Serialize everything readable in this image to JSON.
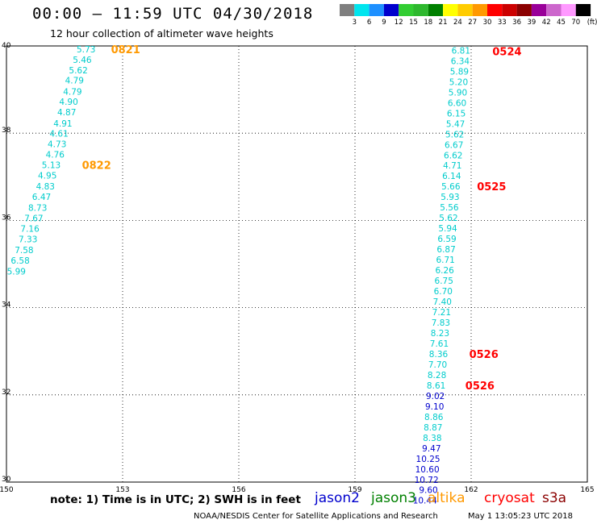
{
  "header": {
    "title": "00:00 – 11:59 UTC 04/30/2018",
    "subtitle": "12 hour collection of altimeter wave heights"
  },
  "colorbar": {
    "labels": [
      "3",
      "6",
      "9",
      "12",
      "15",
      "18",
      "21",
      "24",
      "27",
      "30",
      "33",
      "36",
      "39",
      "42",
      "45",
      "70"
    ],
    "unit": "(ft)",
    "colors": [
      "#7f7f7f",
      "#00e5ee",
      "#1e90ff",
      "#0000cd",
      "#32cd32",
      "#2eb82e",
      "#008000",
      "#ffff00",
      "#ffcc00",
      "#ff9900",
      "#ff0000",
      "#cc0000",
      "#8b0000",
      "#990099",
      "#cc66cc",
      "#ff99ff",
      "#000000"
    ]
  },
  "footer": {
    "note": "note: 1) Time is in UTC; 2) SWH is in feet",
    "satellites": [
      {
        "name": "jason2",
        "color": "#0000cd"
      },
      {
        "name": "jason3",
        "color": "#008000"
      },
      {
        "name": "altika",
        "color": "#ff9900"
      },
      {
        "name": "cryosat",
        "color": "#ff0000"
      },
      {
        "name": "s3a",
        "color": "#8b0000"
      }
    ],
    "credit": "NOAA/NESDIS Center for Satellite Applications and Research",
    "timestamp": "May 1 13:05:23 UTC 2018"
  },
  "chart_data": {
    "type": "scatter",
    "xlim": [
      150,
      165
    ],
    "ylim": [
      30,
      40
    ],
    "xticks": [
      "150",
      "153",
      "156",
      "159",
      "162",
      "165"
    ],
    "yticks": [
      "30",
      "32",
      "34",
      "36",
      "38",
      "40"
    ],
    "grid": true,
    "series": [
      {
        "name": "altika",
        "color": "#00cccc",
        "points": [
          {
            "x": 152.3,
            "y": 39.93,
            "v": "5.73"
          },
          {
            "x": 152.2,
            "y": 39.69,
            "v": "5.46"
          },
          {
            "x": 152.1,
            "y": 39.45,
            "v": "5.62"
          },
          {
            "x": 152.0,
            "y": 39.21,
            "v": "4.79"
          },
          {
            "x": 151.95,
            "y": 38.96,
            "v": "4.79"
          },
          {
            "x": 151.85,
            "y": 38.72,
            "v": "4.90"
          },
          {
            "x": 151.8,
            "y": 38.48,
            "v": "4.87"
          },
          {
            "x": 151.7,
            "y": 38.23,
            "v": "4.91"
          },
          {
            "x": 151.6,
            "y": 37.99,
            "v": "4.61"
          },
          {
            "x": 151.55,
            "y": 37.75,
            "v": "4.73"
          },
          {
            "x": 151.5,
            "y": 37.51,
            "v": "4.76"
          },
          {
            "x": 151.4,
            "y": 37.27,
            "v": "5.13"
          },
          {
            "x": 151.3,
            "y": 37.03,
            "v": "4.95"
          },
          {
            "x": 151.25,
            "y": 36.78,
            "v": "4.83"
          },
          {
            "x": 151.15,
            "y": 36.54,
            "v": "6.47"
          },
          {
            "x": 151.05,
            "y": 36.29,
            "v": "8.73"
          },
          {
            "x": 150.95,
            "y": 36.05,
            "v": "7.67"
          },
          {
            "x": 150.85,
            "y": 35.81,
            "v": "7.16"
          },
          {
            "x": 150.8,
            "y": 35.57,
            "v": "7.33"
          },
          {
            "x": 150.7,
            "y": 35.32,
            "v": "7.58"
          },
          {
            "x": 150.6,
            "y": 35.08,
            "v": "6.58"
          },
          {
            "x": 150.5,
            "y": 34.83,
            "v": "5.99"
          }
        ]
      },
      {
        "name": "cryosat",
        "color": "#00cccc",
        "points": [
          {
            "x": 161.98,
            "y": 39.9,
            "v": "6.81"
          },
          {
            "x": 161.96,
            "y": 39.66,
            "v": "6.34"
          },
          {
            "x": 161.94,
            "y": 39.42,
            "v": "5.89"
          },
          {
            "x": 161.92,
            "y": 39.18,
            "v": "5.20"
          },
          {
            "x": 161.9,
            "y": 38.94,
            "v": "5.90"
          },
          {
            "x": 161.88,
            "y": 38.7,
            "v": "6.60"
          },
          {
            "x": 161.86,
            "y": 38.46,
            "v": "6.15"
          },
          {
            "x": 161.84,
            "y": 38.22,
            "v": "5.47"
          },
          {
            "x": 161.82,
            "y": 37.98,
            "v": "5.62"
          },
          {
            "x": 161.8,
            "y": 37.74,
            "v": "6.67"
          },
          {
            "x": 161.78,
            "y": 37.5,
            "v": "6.62"
          },
          {
            "x": 161.76,
            "y": 37.26,
            "v": "4.71"
          },
          {
            "x": 161.74,
            "y": 37.02,
            "v": "6.14"
          },
          {
            "x": 161.72,
            "y": 36.78,
            "v": "5.66"
          },
          {
            "x": 161.7,
            "y": 36.54,
            "v": "5.93"
          },
          {
            "x": 161.68,
            "y": 36.3,
            "v": "5.56"
          },
          {
            "x": 161.66,
            "y": 36.06,
            "v": "5.62"
          },
          {
            "x": 161.64,
            "y": 35.82,
            "v": "5.94"
          },
          {
            "x": 161.62,
            "y": 35.58,
            "v": "6.59"
          },
          {
            "x": 161.6,
            "y": 35.34,
            "v": "6.87"
          },
          {
            "x": 161.58,
            "y": 35.1,
            "v": "6.71"
          },
          {
            "x": 161.56,
            "y": 34.86,
            "v": "6.26"
          },
          {
            "x": 161.54,
            "y": 34.62,
            "v": "6.75"
          },
          {
            "x": 161.52,
            "y": 34.38,
            "v": "6.70"
          },
          {
            "x": 161.5,
            "y": 34.14,
            "v": "7.40"
          },
          {
            "x": 161.48,
            "y": 33.9,
            "v": "7.21"
          },
          {
            "x": 161.46,
            "y": 33.66,
            "v": "7.83"
          },
          {
            "x": 161.44,
            "y": 33.42,
            "v": "8.23"
          },
          {
            "x": 161.42,
            "y": 33.18,
            "v": "7.61"
          },
          {
            "x": 161.4,
            "y": 32.94,
            "v": "8.36"
          },
          {
            "x": 161.38,
            "y": 32.7,
            "v": "7.70"
          },
          {
            "x": 161.36,
            "y": 32.46,
            "v": "8.28"
          },
          {
            "x": 161.34,
            "y": 32.22,
            "v": "8.61"
          }
        ]
      },
      {
        "name": "jason2",
        "color": "#0000cd",
        "points": [
          {
            "x": 161.32,
            "y": 31.98,
            "v": "9.02"
          },
          {
            "x": 161.3,
            "y": 31.74,
            "v": "9.10"
          }
        ]
      },
      {
        "name": "cryosat",
        "color": "#00cccc",
        "points": [
          {
            "x": 161.28,
            "y": 31.5,
            "v": "8.86"
          },
          {
            "x": 161.26,
            "y": 31.26,
            "v": "8.87"
          },
          {
            "x": 161.24,
            "y": 31.02,
            "v": "8.38"
          }
        ]
      },
      {
        "name": "jason2",
        "color": "#0000cd",
        "points": [
          {
            "x": 161.22,
            "y": 30.78,
            "v": "9.47"
          },
          {
            "x": 161.2,
            "y": 30.54,
            "v": "10.25"
          },
          {
            "x": 161.18,
            "y": 30.3,
            "v": "10.60"
          },
          {
            "x": 161.16,
            "y": 30.06,
            "v": "10.72"
          },
          {
            "x": 161.14,
            "y": 29.82,
            "v": "9.60"
          },
          {
            "x": 161.12,
            "y": 29.58,
            "v": "10.44"
          }
        ]
      }
    ],
    "time_labels": [
      {
        "x": 152.7,
        "y": 39.93,
        "text": "0821",
        "color": "#ff9900"
      },
      {
        "x": 151.95,
        "y": 37.27,
        "text": "0822",
        "color": "#ff9900"
      },
      {
        "x": 162.55,
        "y": 39.88,
        "text": "0524",
        "color": "#ff0000"
      },
      {
        "x": 162.15,
        "y": 36.78,
        "text": "0525",
        "color": "#ff0000"
      },
      {
        "x": 161.95,
        "y": 32.94,
        "text": "0526",
        "color": "#ff0000"
      },
      {
        "x": 161.85,
        "y": 32.22,
        "text": "0526",
        "color": "#ff0000"
      }
    ]
  }
}
